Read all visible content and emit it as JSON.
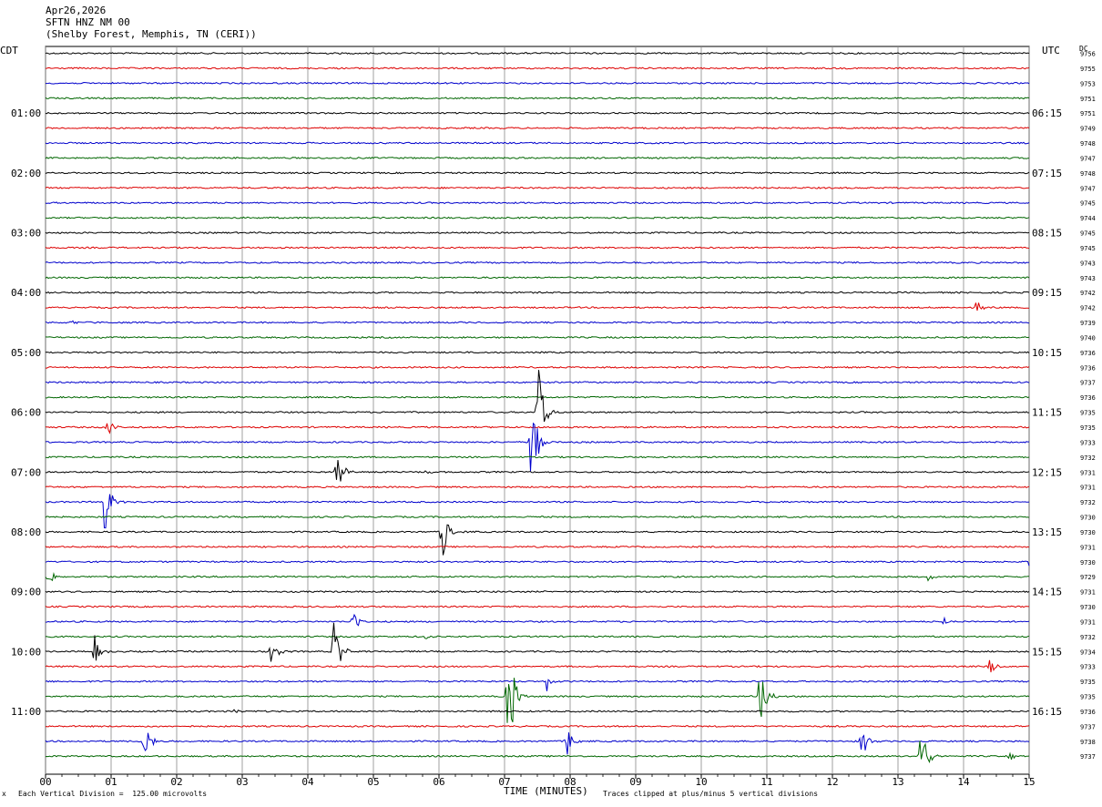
{
  "header": {
    "date": "Apr26,2026",
    "channel": "SFTN HNZ NM 00",
    "site": "(Shelby Forest, Memphis, TN (CERI))"
  },
  "left_zone": "CDT",
  "right_zone": "UTC",
  "right_col_label": "DC",
  "footer": {
    "scale": "Each Vertical Division =  125.00 microvolts",
    "clip": "Traces clipped at plus/minus 5 vertical divisions",
    "mark": "x"
  },
  "colors": {
    "trace": [
      "#000000",
      "#dd0000",
      "#0000cc",
      "#006600"
    ],
    "grid": "#888888"
  },
  "chart_data": {
    "type": "line",
    "title": "",
    "xlabel": "TIME (MINUTES)",
    "xlim": [
      0,
      15
    ],
    "x_ticks": [
      "00",
      "01",
      "02",
      "03",
      "04",
      "05",
      "06",
      "07",
      "08",
      "09",
      "10",
      "11",
      "12",
      "13",
      "14",
      "15"
    ],
    "left_hour_labels": [
      "01:00",
      "02:00",
      "03:00",
      "04:00",
      "05:00",
      "06:00",
      "07:00",
      "08:00",
      "09:00",
      "10:00",
      "11:00"
    ],
    "right_hour_labels": [
      "06:15",
      "07:15",
      "08:15",
      "09:15",
      "10:15",
      "11:15",
      "12:15",
      "13:15",
      "14:15",
      "15:15",
      "16:15"
    ],
    "dc_offsets": [
      "9756",
      "9755",
      "9753",
      "9751",
      "9751",
      "9749",
      "9748",
      "9747",
      "9748",
      "9747",
      "9745",
      "9744",
      "9745",
      "9745",
      "9743",
      "9743",
      "9742",
      "9742",
      "9739",
      "9740",
      "9736",
      "9736",
      "9737",
      "9736",
      "9735",
      "9735",
      "9733",
      "9732",
      "9731",
      "9731",
      "9732",
      "9730",
      "9730",
      "9731",
      "9730",
      "9729",
      "9731",
      "9730",
      "9731",
      "9732",
      "9734",
      "9733",
      "9735",
      "9735",
      "9736",
      "9737",
      "9738",
      "9737"
    ],
    "events": [
      {
        "row": 17,
        "minute": 14.2,
        "amp": 7
      },
      {
        "row": 18,
        "minute": 0.4,
        "amp": 3
      },
      {
        "row": 24,
        "minute": 7.5,
        "amp": 70
      },
      {
        "row": 25,
        "minute": 0.95,
        "amp": 10
      },
      {
        "row": 26,
        "minute": 7.4,
        "amp": 80
      },
      {
        "row": 28,
        "minute": 4.45,
        "amp": 30
      },
      {
        "row": 28,
        "minute": 5.8,
        "amp": 3
      },
      {
        "row": 30,
        "minute": 0.9,
        "amp": 40
      },
      {
        "row": 32,
        "minute": 6.05,
        "amp": 38
      },
      {
        "row": 35,
        "minute": 0.05,
        "amp": 10
      },
      {
        "row": 35,
        "minute": 13.45,
        "amp": 5
      },
      {
        "row": 34,
        "minute": 15.0,
        "amp": 6
      },
      {
        "row": 38,
        "minute": 4.7,
        "amp": 15
      },
      {
        "row": 38,
        "minute": 13.7,
        "amp": 4
      },
      {
        "row": 39,
        "minute": 5.8,
        "amp": 3
      },
      {
        "row": 40,
        "minute": 3.45,
        "amp": 20
      },
      {
        "row": 40,
        "minute": 4.4,
        "amp": 45
      },
      {
        "row": 40,
        "minute": 0.75,
        "amp": 18
      },
      {
        "row": 41,
        "minute": 14.4,
        "amp": 10
      },
      {
        "row": 42,
        "minute": 7.65,
        "amp": 12
      },
      {
        "row": 43,
        "minute": 10.9,
        "amp": 45
      },
      {
        "row": 43,
        "minute": 7.05,
        "amp": 80
      },
      {
        "row": 44,
        "minute": 2.9,
        "amp": 3
      },
      {
        "row": 46,
        "minute": 1.5,
        "amp": 38
      },
      {
        "row": 46,
        "minute": 12.45,
        "amp": 20
      },
      {
        "row": 46,
        "minute": 7.95,
        "amp": 18
      },
      {
        "row": 47,
        "minute": 13.35,
        "amp": 45
      },
      {
        "row": 47,
        "minute": 14.7,
        "amp": 6
      }
    ]
  }
}
